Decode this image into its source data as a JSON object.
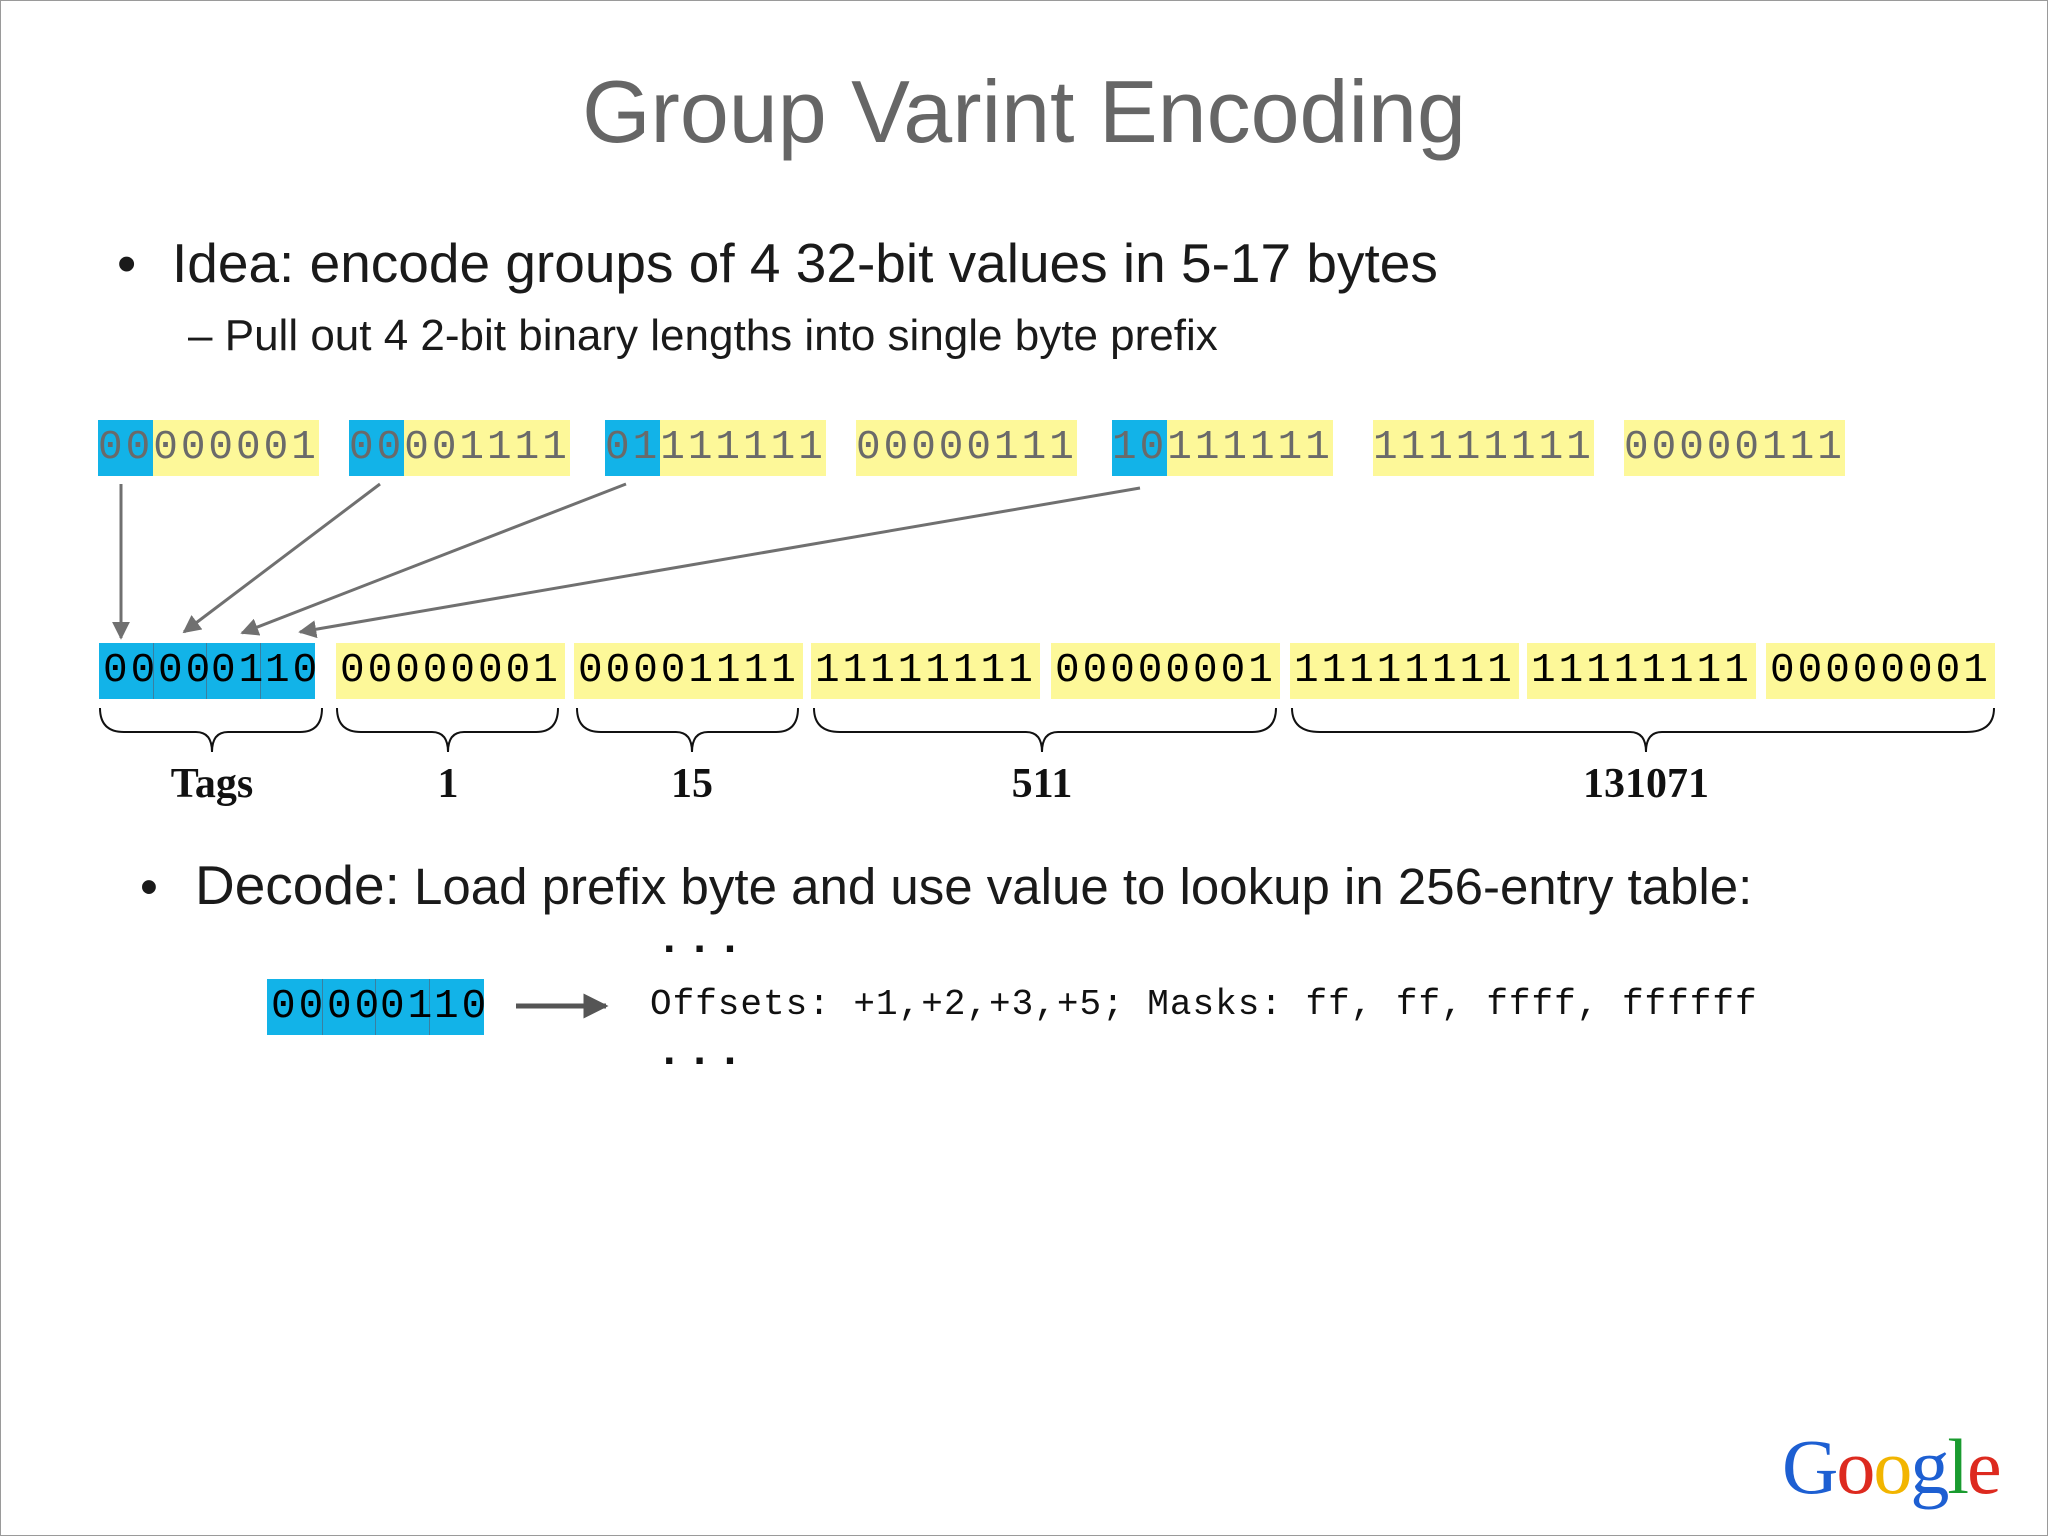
{
  "slide": {
    "title": "Group Varint Encoding",
    "bullet1": {
      "dot": "•",
      "text": "Idea: encode groups of 4 32-bit values in 5-17 bytes"
    },
    "sub1": {
      "dash": "–",
      "text": "Pull out 4 2-bit binary lengths into single byte prefix"
    },
    "bullet2": {
      "dot": "•",
      "lead": "Decode:",
      "text": " Load prefix byte and use value to lookup in 256-entry table:"
    }
  },
  "input_bytes": [
    {
      "tag": "00",
      "rest": "000001"
    },
    {
      "tag": "00",
      "rest": "001111"
    },
    {
      "tag": "01",
      "rest": "111111"
    },
    {
      "tag": "",
      "rest": "00000111"
    },
    {
      "tag": "10",
      "rest": "111111"
    },
    {
      "tag": "",
      "rest": "11111111"
    },
    {
      "tag": "",
      "rest": "00000111"
    }
  ],
  "encoded": {
    "tag_pairs": [
      "00",
      "00",
      "01",
      "10"
    ],
    "bytes": [
      "00000001",
      "00001111",
      "11111111",
      "00000001",
      "11111111",
      "11111111",
      "00000001"
    ]
  },
  "group_labels": [
    "Tags",
    "1",
    "15",
    "511",
    "131071"
  ],
  "decode": {
    "tag_pairs": [
      "00",
      "00",
      "01",
      "10"
    ],
    "ellipsis_top": "...",
    "table_entry": "Offsets: +1,+2,+3,+5; Masks: ff, ff, ffff, ffffff",
    "ellipsis_bottom": "..."
  },
  "logo": {
    "text": "Google",
    "colors": [
      "#1d5fd2",
      "#dd2a1f",
      "#f2b500",
      "#1d5fd2",
      "#1a9b2f",
      "#dd2a1f"
    ]
  },
  "colors": {
    "tag_blue": "#12b3e8",
    "byte_yellow": "#fdf899",
    "arrow_gray": "#707070"
  }
}
